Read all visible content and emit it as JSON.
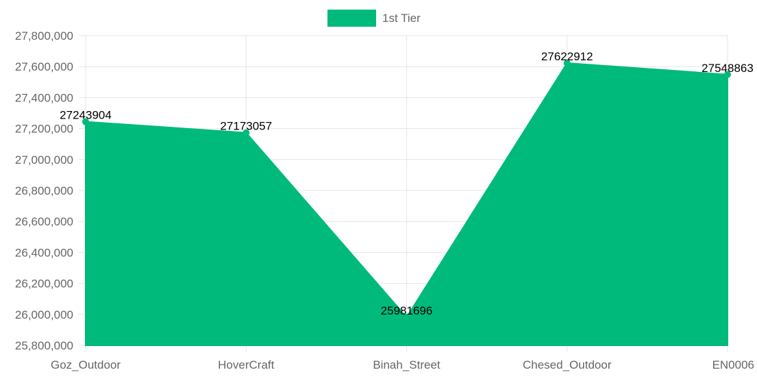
{
  "chart_data": {
    "type": "area",
    "categories": [
      "Goz_Outdoor",
      "HoverCraft",
      "Binah_Street",
      "Chesed_Outdoor",
      "EN0006"
    ],
    "series": [
      {
        "name": "1st Tier",
        "values": [
          27243904,
          27173057,
          25981696,
          27622912,
          27548863
        ],
        "color": "#00BA7C"
      }
    ],
    "y_ticks": [
      "27,800,000",
      "27,600,000",
      "27,400,000",
      "27,200,000",
      "27,000,000",
      "26,800,000",
      "26,600,000",
      "26,400,000",
      "26,200,000",
      "26,000,000",
      "25,800,000"
    ],
    "ylim": [
      25800000,
      27800000
    ],
    "grid": true,
    "legend": "top-center",
    "title": "",
    "xlabel": "",
    "ylabel": ""
  },
  "colors": {
    "series": "#00BA7C",
    "grid": "#e6e6e6",
    "tick_text": "#666666",
    "data_label": "#000000"
  }
}
